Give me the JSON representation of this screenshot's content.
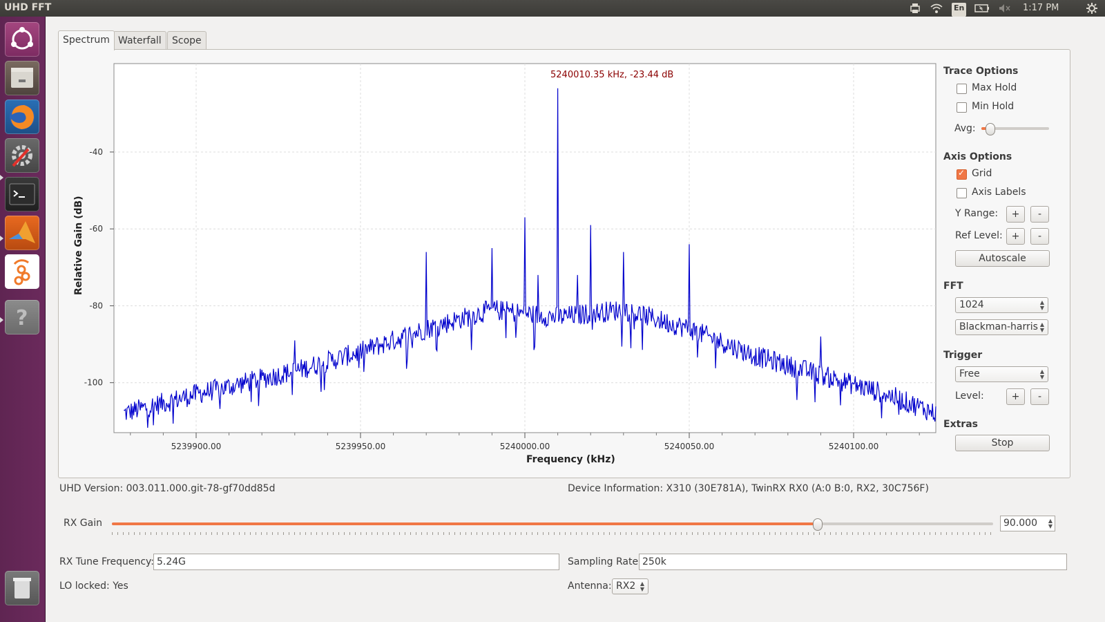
{
  "window_title": "UHD FFT",
  "tray": {
    "language": "En",
    "time": "1:17 PM"
  },
  "launcher": [
    {
      "name": "ubuntu-dash"
    },
    {
      "name": "files"
    },
    {
      "name": "firefox"
    },
    {
      "name": "system-settings"
    },
    {
      "name": "terminal"
    },
    {
      "name": "matlab"
    },
    {
      "name": "gnuradio"
    },
    {
      "name": "help"
    },
    {
      "name": "trash"
    }
  ],
  "tabs": [
    {
      "label": "Spectrum",
      "active": true
    },
    {
      "label": "Waterfall"
    },
    {
      "label": "Scope"
    }
  ],
  "plot": {
    "marker": "5240010.35 kHz, -23.44 dB"
  },
  "chart_data": {
    "type": "line",
    "xlabel": "Frequency (kHz)",
    "ylabel": "Relative Gain (dB)",
    "xlim": [
      5239875,
      5240125
    ],
    "ylim": [
      -113,
      -17
    ],
    "x_ticks": [
      5239900,
      5239950,
      5240000,
      5240050,
      5240100
    ],
    "x_tick_labels": [
      "5239900.00",
      "5239950.00",
      "5240000.00",
      "5240050.00",
      "5240100.00"
    ],
    "y_ticks": [
      -40,
      -60,
      -80,
      -100
    ],
    "y_tick_labels": [
      "-40",
      "-60",
      "-80",
      "-100"
    ],
    "grid": true,
    "color": "#0000cc",
    "envelope": {
      "x": [
        5239878,
        5239900,
        5239930,
        5239950,
        5239970,
        5239990,
        5240000,
        5240010,
        5240030,
        5240050,
        5240070,
        5240090,
        5240110,
        5240125
      ],
      "y": [
        -108,
        -103,
        -97,
        -92,
        -86,
        -81,
        -82,
        -83,
        -81,
        -86,
        -93,
        -98,
        -103,
        -108
      ]
    },
    "peaks": [
      {
        "x": 5239930,
        "y": -89
      },
      {
        "x": 5239970,
        "y": -66
      },
      {
        "x": 5239990,
        "y": -65
      },
      {
        "x": 5240000,
        "y": -57
      },
      {
        "x": 5240004,
        "y": -72
      },
      {
        "x": 5240010,
        "y": -23.44
      },
      {
        "x": 5240016,
        "y": -72
      },
      {
        "x": 5240020,
        "y": -59
      },
      {
        "x": 5240030,
        "y": -66
      },
      {
        "x": 5240050,
        "y": -64
      },
      {
        "x": 5240090,
        "y": -88
      }
    ]
  },
  "trace_options": {
    "title": "Trace Options",
    "max_hold": "Max Hold",
    "min_hold": "Min Hold",
    "avg_label": "Avg:",
    "avg_value": 0.1
  },
  "axis_options": {
    "title": "Axis Options",
    "grid": "Grid",
    "grid_checked": true,
    "axis_labels": "Axis Labels",
    "y_range": "Y Range:",
    "ref_level": "Ref Level:",
    "plus": "+",
    "minus": "-",
    "autoscale": "Autoscale"
  },
  "fft": {
    "title": "FFT",
    "size": "1024",
    "window": "Blackman-harris"
  },
  "trigger": {
    "title": "Trigger",
    "mode": "Free",
    "level": "Level:"
  },
  "extras": {
    "title": "Extras",
    "stop": "Stop"
  },
  "info": {
    "uhd_version": "UHD Version: 003.011.000.git-78-gf70dd85d",
    "device_info": "Device Information: X310 (30E781A), TwinRX RX0 (A:0 B:0, RX2, 30C756F)"
  },
  "rx_gain": {
    "label": "RX Gain",
    "value": "90.000",
    "fraction": 0.8
  },
  "tune": {
    "label": "RX Tune Frequency:",
    "value": "5.24G"
  },
  "sampling": {
    "label": "Sampling Rate:",
    "value": "250k"
  },
  "lo": {
    "label": "LO locked: Yes"
  },
  "antenna": {
    "label": "Antenna:",
    "value": "RX2"
  }
}
